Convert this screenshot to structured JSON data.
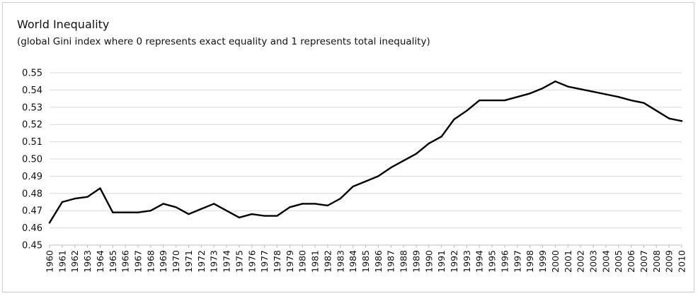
{
  "chart_data": {
    "type": "line",
    "title": "World Inequality",
    "subtitle": "(global Gini index where 0 represents exact equality and 1 represents total inequality)",
    "xlabel": "",
    "ylabel": "",
    "ylim": [
      0.45,
      0.55
    ],
    "yticks": [
      "0.45",
      "0.46",
      "0.47",
      "0.48",
      "0.49",
      "0.50",
      "0.51",
      "0.52",
      "0.53",
      "0.54",
      "0.55"
    ],
    "grid": true,
    "legend": "none",
    "colors": {
      "line": "#000000",
      "grid": "#d9d9d9"
    },
    "x": [
      "1960",
      "1961",
      "1962",
      "1963",
      "1964",
      "1965",
      "1966",
      "1967",
      "1968",
      "1969",
      "1970",
      "1971",
      "1972",
      "1973",
      "1974",
      "1975",
      "1976",
      "1977",
      "1978",
      "1979",
      "1980",
      "1981",
      "1982",
      "1983",
      "1984",
      "1985",
      "1986",
      "1987",
      "1988",
      "1989",
      "1990",
      "1991",
      "1992",
      "1993",
      "1994",
      "1995",
      "1996",
      "1997",
      "1998",
      "1999",
      "2000",
      "2001",
      "2002",
      "2003",
      "2004",
      "2005",
      "2006",
      "2007",
      "2008",
      "2009",
      "2010"
    ],
    "series": [
      {
        "values": [
          0.463,
          0.475,
          0.477,
          0.478,
          0.483,
          0.469,
          0.469,
          0.469,
          0.47,
          0.474,
          0.472,
          0.468,
          0.471,
          0.474,
          0.47,
          0.466,
          0.468,
          0.467,
          0.467,
          0.472,
          0.474,
          0.474,
          0.473,
          0.477,
          0.484,
          0.487,
          0.49,
          0.495,
          0.499,
          0.503,
          0.509,
          0.513,
          0.523,
          0.528,
          0.534,
          0.534,
          0.534,
          0.536,
          0.538,
          0.541,
          0.545,
          0.542,
          0.5405,
          0.539,
          0.5375,
          0.536,
          0.534,
          0.5325,
          0.528,
          0.5235,
          0.522
        ]
      }
    ]
  }
}
